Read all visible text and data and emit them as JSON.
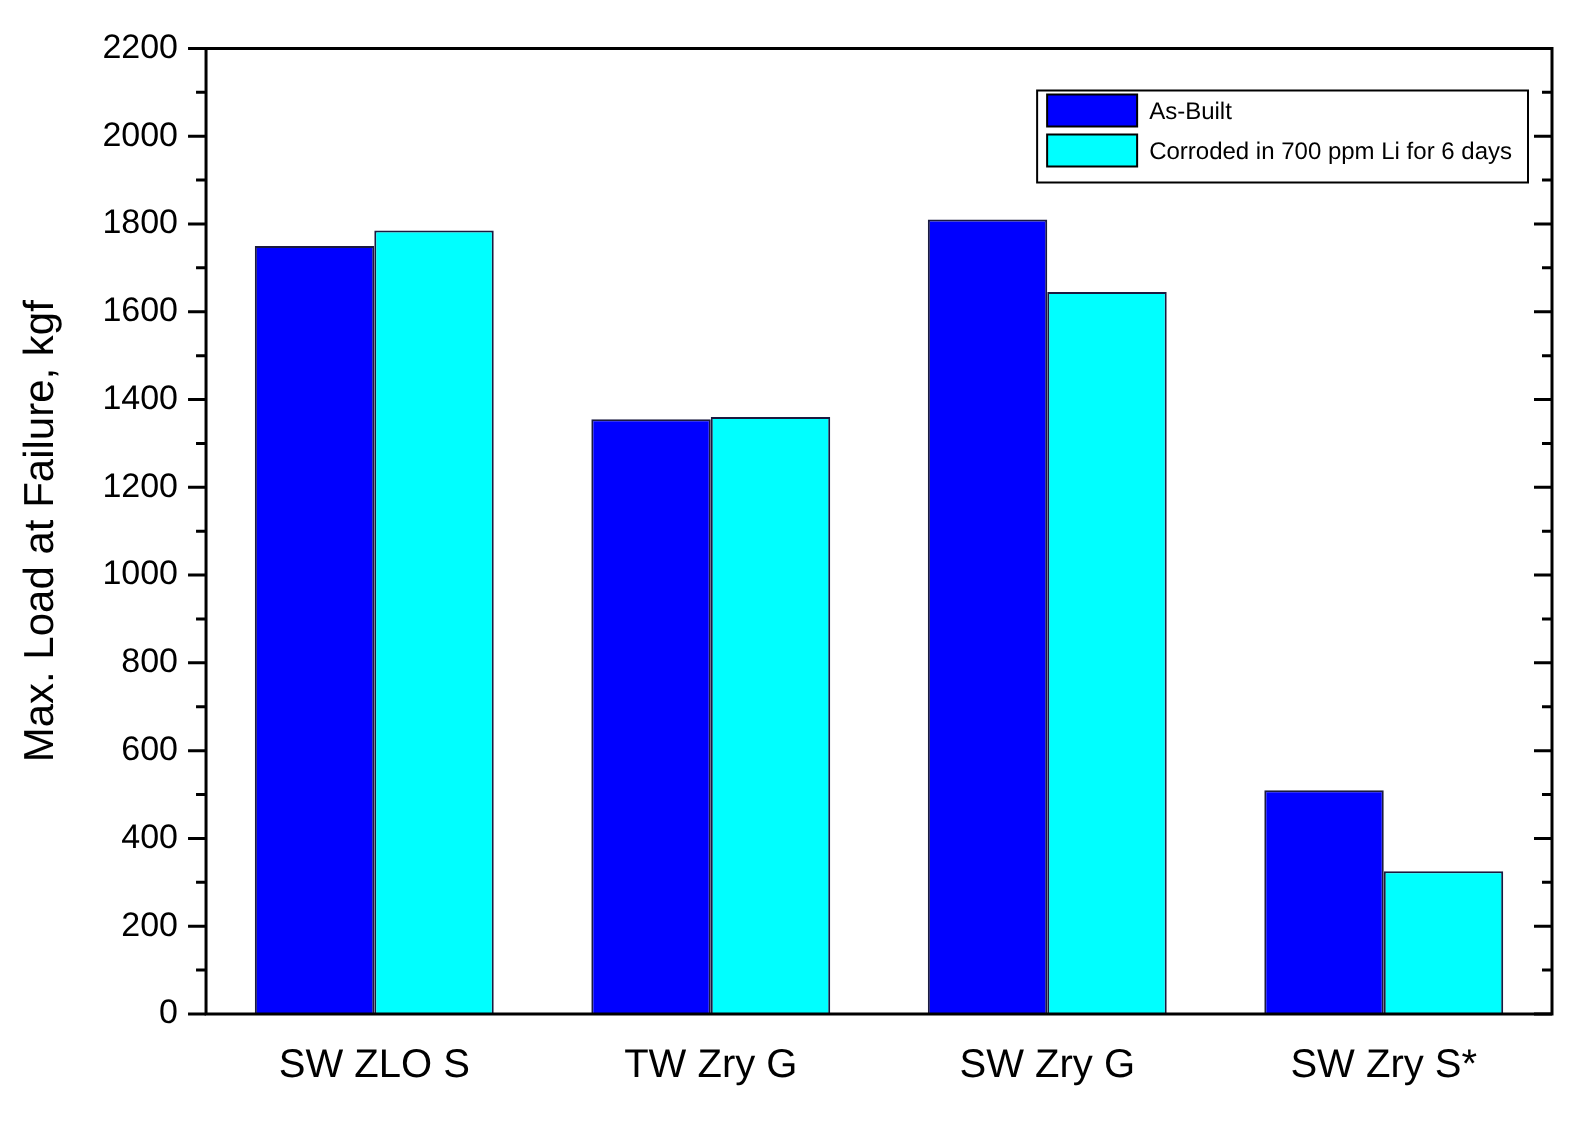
{
  "chart_data": {
    "type": "bar",
    "ylabel": "Max. Load at Failure, kgf",
    "categories": [
      "SW ZLO S",
      "TW Zry G",
      "SW Zry G",
      "SW Zry S*"
    ],
    "series": [
      {
        "name": "As-Built",
        "color": "#0000ff",
        "values": [
          1750,
          1355,
          1810,
          510
        ]
      },
      {
        "name": "Corroded in 700 ppm Li for 6 days",
        "color": "#00ffff",
        "values": [
          1785,
          1360,
          1645,
          325
        ]
      }
    ],
    "ylim": [
      0,
      2200
    ],
    "yticks": [
      0,
      {
        "value": 100,
        "label": null
      },
      200,
      {
        "value": 300,
        "label": null
      },
      400,
      {
        "value": 500,
        "label": null
      },
      600,
      {
        "value": 700,
        "label": null
      },
      800,
      {
        "value": 900,
        "label": null
      },
      1000,
      {
        "value": 1100,
        "label": null
      },
      1200,
      {
        "value": 1300,
        "label": null
      },
      1400,
      {
        "value": 1500,
        "label": null
      },
      1600,
      {
        "value": 1700,
        "label": null
      },
      1800,
      {
        "value": 1900,
        "label": null
      },
      2000,
      {
        "value": 2100,
        "label": null
      },
      2200
    ],
    "grid": false,
    "legend": "top right"
  }
}
